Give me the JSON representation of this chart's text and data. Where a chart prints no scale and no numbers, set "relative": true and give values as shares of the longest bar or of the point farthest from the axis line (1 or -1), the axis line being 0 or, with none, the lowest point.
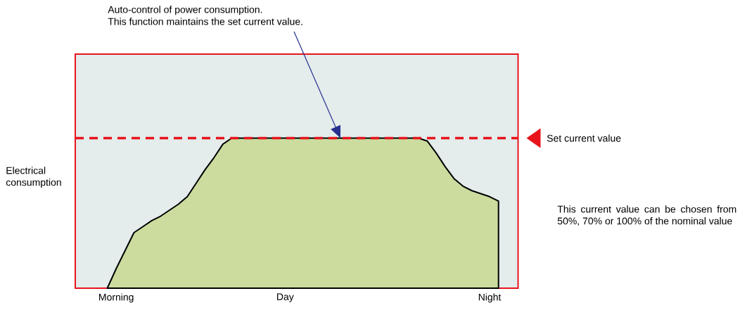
{
  "chart_data": {
    "type": "area",
    "relative": true,
    "ylabel": "Electrical consumption",
    "categories": [
      null,
      "Morning",
      null,
      null,
      null,
      null,
      null,
      null,
      null,
      null,
      null,
      null,
      null,
      null,
      null,
      null,
      null,
      null,
      null,
      null,
      "Day",
      null,
      null,
      null,
      null,
      null,
      null,
      null,
      null,
      null,
      null,
      null,
      null,
      null,
      null,
      null,
      null,
      null,
      null,
      null,
      null,
      null,
      null,
      "Night",
      null
    ],
    "series": [
      {
        "color": "#cbdc9e",
        "values": [
          0,
          0.13,
          0.25,
          0.37,
          0.41,
          0.45,
          0.48,
          0.52,
          0.56,
          0.61,
          0.7,
          0.79,
          0.87,
          0.96,
          1,
          1,
          1,
          1,
          1,
          1,
          1,
          1,
          1,
          1,
          1,
          1,
          1,
          1,
          1,
          1,
          1,
          1,
          1,
          1,
          1,
          1,
          0.98,
          0.9,
          0.81,
          0.73,
          0.68,
          0.65,
          0.63,
          0.61,
          0.58
        ]
      }
    ],
    "ref_lines": [
      {
        "axis": "y",
        "value": 1,
        "label": "Set current value",
        "color": "#e8141c",
        "line_style": "dashed"
      }
    ],
    "annotations": [
      "Auto-control of power consumption.",
      "This function maintains the set current value.",
      "This current value can be chosen from 50%, 70% or 100% of the nominal value"
    ]
  }
}
